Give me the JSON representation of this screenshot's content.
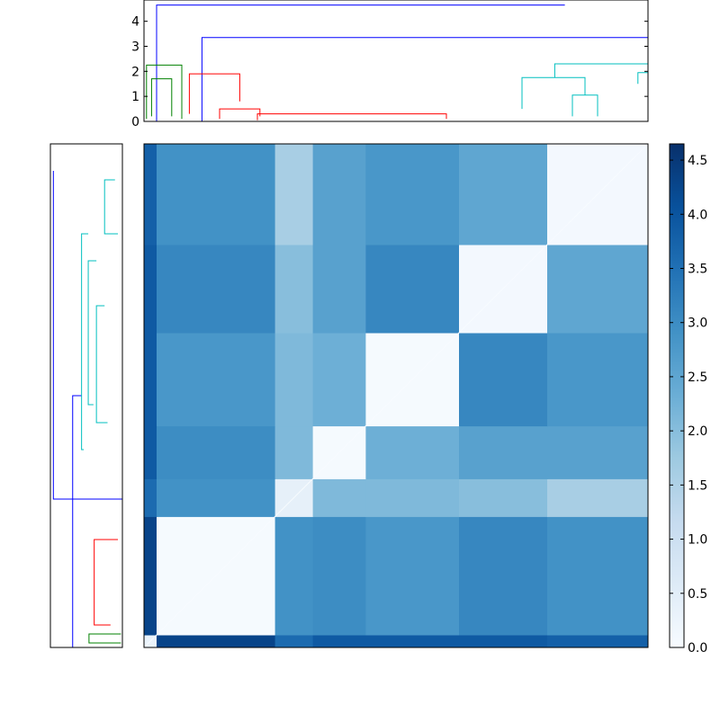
{
  "chart_data": [
    {
      "panel": "top-dendrogram",
      "type": "dendrogram",
      "orientation": "top",
      "title": "",
      "xlabel": "",
      "ylabel": "",
      "ylim": [
        0,
        4.85
      ],
      "yticks": [
        0,
        1,
        2,
        3,
        4
      ],
      "ytick_labels": [
        "0",
        "1",
        "2",
        "3",
        "4"
      ],
      "colors": {
        "green": "#008000",
        "red": "#ff0000",
        "cyan": "#00bfbf",
        "blue": "#0000ff"
      },
      "links": [
        {
          "c": "blue",
          "x1": 5,
          "x2": 167,
          "h": 4.65,
          "hl": 0.0,
          "hr": 4.65
        },
        {
          "c": "blue",
          "x1": 23,
          "x2": 309,
          "h": 3.35,
          "hl": 0,
          "hr": 2.75
        },
        {
          "c": "green",
          "x1": 1,
          "x2": 15,
          "h": 2.25,
          "hl": 0.1,
          "hr": 0.1
        },
        {
          "c": "green",
          "x1": 3,
          "x2": 11,
          "h": 1.7,
          "hl": 0.2,
          "hr": 0.2
        },
        {
          "c": "red",
          "x1": 18,
          "x2": 38,
          "h": 1.9,
          "hl": 0.3,
          "hr": 0.8
        },
        {
          "c": "red",
          "x1": 30,
          "x2": 46,
          "h": 0.5,
          "hl": 0.1,
          "hr": 0.2
        },
        {
          "c": "red",
          "x1": 45,
          "x2": 120,
          "h": 0.3,
          "hl": 0.05,
          "hr": 0.1
        },
        {
          "c": "cyan",
          "x1": 205,
          "x2": 413,
          "h": 2.75,
          "hl": 2.3,
          "hr": 2.6
        },
        {
          "c": "cyan",
          "x1": 163,
          "x2": 246,
          "h": 2.3,
          "hl": 1.75,
          "hr": 1.95
        },
        {
          "c": "cyan",
          "x1": 196,
          "x2": 250,
          "h": 1.95,
          "hl": 1.5,
          "hr": 1.4
        },
        {
          "c": "cyan",
          "x1": 150,
          "x2": 175,
          "h": 1.75,
          "hl": 0.5,
          "hr": 1.05
        },
        {
          "c": "cyan",
          "x1": 170,
          "x2": 180,
          "h": 1.05,
          "hl": 0.2,
          "hr": 0.2
        },
        {
          "c": "cyan",
          "x1": 376,
          "x2": 450,
          "h": 2.6,
          "hl": 2.25,
          "hr": 1.65
        },
        {
          "c": "cyan",
          "x1": 350,
          "x2": 402,
          "h": 2.25,
          "hl": 1.6,
          "hr": 1.4
        },
        {
          "c": "cyan",
          "x1": 445,
          "x2": 456,
          "h": 1.65,
          "hl": 1.2,
          "hr": 1.0
        },
        {
          "c": "cyan",
          "x1": 460,
          "x2": 470,
          "h": 1.0,
          "hl": 0.2,
          "hr": 0.4
        }
      ]
    },
    {
      "panel": "left-dendrogram",
      "type": "dendrogram",
      "orientation": "left",
      "title": "",
      "xlabel": "",
      "ylabel": "",
      "links": [
        {
          "c": "blue",
          "y1": 555,
          "y2": 190,
          "h": 4.65,
          "hl": 0.0,
          "hr": 4.65
        },
        {
          "c": "blue",
          "y1": 720,
          "y2": 440,
          "h": 3.35,
          "hl": 0,
          "hr": 2.75
        },
        {
          "c": "green",
          "y1": 705,
          "y2": 715,
          "h": 2.25,
          "hl": 0.1,
          "hr": 0.1
        },
        {
          "c": "red",
          "y1": 600,
          "y2": 695,
          "h": 1.9,
          "hl": 0.3,
          "hr": 0.8
        },
        {
          "c": "cyan",
          "y1": 260,
          "y2": 500,
          "h": 2.75,
          "hl": 2.3,
          "hr": 2.6
        },
        {
          "c": "cyan",
          "y1": 290,
          "y2": 450,
          "h": 2.3,
          "hl": 1.75,
          "hr": 1.95
        },
        {
          "c": "cyan",
          "y1": 340,
          "y2": 470,
          "h": 1.75,
          "hl": 1.2,
          "hr": 1.0
        },
        {
          "c": "cyan",
          "y1": 200,
          "y2": 260,
          "h": 1.2,
          "hl": 0.5,
          "hr": 0.3
        }
      ]
    },
    {
      "panel": "heatmap",
      "type": "heatmap",
      "title": "",
      "xlabel": "",
      "ylabel": "",
      "note": "Symmetric distance matrix; leaf groups in dendrogram order (index ranges out of 200). z values are distances.",
      "groups": [
        {
          "id": "A",
          "from": 0,
          "to": 5
        },
        {
          "id": "B",
          "from": 5,
          "to": 52
        },
        {
          "id": "C",
          "from": 52,
          "to": 67
        },
        {
          "id": "D",
          "from": 67,
          "to": 88
        },
        {
          "id": "E",
          "from": 88,
          "to": 125
        },
        {
          "id": "F",
          "from": 125,
          "to": 160
        },
        {
          "id": "G",
          "from": 160,
          "to": 200
        }
      ],
      "matrix_rows_top_to_bottom": [
        "G",
        "F",
        "E",
        "D",
        "C",
        "B",
        "A"
      ],
      "block_values": {
        "AA": 0.3,
        "AB": 4.3,
        "AC": 3.6,
        "AD": 3.9,
        "AE": 3.9,
        "AF": 3.9,
        "AG": 3.8,
        "BB": 0.05,
        "BC": 2.9,
        "BD": 3.0,
        "BE": 2.8,
        "BF": 3.1,
        "BG": 2.9,
        "CC": 0.4,
        "CD": 2.1,
        "CE": 2.1,
        "CF": 2.0,
        "CG": 1.6,
        "DD": 0.05,
        "DE": 2.3,
        "DF": 2.6,
        "DG": 2.6,
        "EE": 0.05,
        "EF": 3.1,
        "EG": 2.8,
        "FF": 0.1,
        "FG": 2.5,
        "GG": 0.1
      },
      "colorbar": {
        "label": "",
        "vmin": 0.0,
        "vmax": 4.65,
        "ticks": [
          0.0,
          0.5,
          1.0,
          1.5,
          2.0,
          2.5,
          3.0,
          3.5,
          4.0,
          4.5
        ],
        "tick_labels": [
          "0.0",
          "0.5",
          "1.0",
          "1.5",
          "2.0",
          "2.5",
          "3.0",
          "3.5",
          "4.0",
          "4.5"
        ],
        "colormap": "Blues",
        "stops": [
          "#f7fbff",
          "#deebf7",
          "#c6dbef",
          "#9ecae1",
          "#6baed6",
          "#4292c6",
          "#2171b5",
          "#08519c",
          "#08306b"
        ]
      }
    }
  ]
}
